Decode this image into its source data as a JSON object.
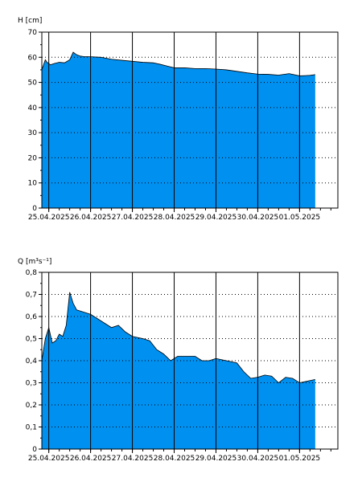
{
  "chart_data": [
    {
      "type": "area",
      "ylabel": "H [cm]",
      "ylim": [
        0,
        70
      ],
      "xlim": [
        "2025-04-24T20:00",
        "2025-05-01T22:00"
      ],
      "y_ticks": [
        "0",
        "10",
        "20",
        "30",
        "40",
        "50",
        "60",
        "70"
      ],
      "x_tick_labels": [
        "25.04.2025",
        "26.04.2025",
        "27.04.2025",
        "28.04.2025",
        "29.04.2025",
        "30.04.2025",
        "01.05.2025"
      ],
      "fill_color": "#0090f0",
      "grid": "dotted horizontal, solid vertical at midnight",
      "series": [
        {
          "x": [
            "2025-04-24T20:00",
            "2025-04-24T21:00",
            "2025-04-24T22:00",
            "2025-04-24T23:00",
            "2025-04-25T01:00",
            "2025-04-25T03:00",
            "2025-04-25T06:00",
            "2025-04-25T09:00",
            "2025-04-25T12:00",
            "2025-04-25T14:00",
            "2025-04-25T16:00",
            "2025-04-25T18:00",
            "2025-04-25T20:00",
            "2025-04-26T00:00",
            "2025-04-26T06:00",
            "2025-04-26T12:00",
            "2025-04-26T18:00",
            "2025-04-27T00:00",
            "2025-04-27T06:00",
            "2025-04-27T12:00",
            "2025-04-27T16:00",
            "2025-04-27T20:00",
            "2025-04-28T00:00",
            "2025-04-28T06:00",
            "2025-04-28T12:00",
            "2025-04-28T18:00",
            "2025-04-29T00:00",
            "2025-04-29T06:00",
            "2025-04-29T12:00",
            "2025-04-29T18:00",
            "2025-04-30T00:00",
            "2025-04-30T06:00",
            "2025-04-30T12:00",
            "2025-04-30T18:00",
            "2025-05-01T00:00",
            "2025-05-01T06:00",
            "2025-05-01T09:00"
          ],
          "y": [
            55,
            57,
            59,
            58,
            57,
            57.5,
            58,
            57.8,
            59,
            62,
            61,
            60.5,
            60.3,
            60.2,
            60,
            59.2,
            58.8,
            58.4,
            58,
            57.8,
            57.2,
            56.5,
            55.8,
            55.8,
            55.5,
            55.5,
            55.3,
            55,
            54.4,
            53.8,
            53.3,
            53.2,
            52.9,
            53.5,
            52.6,
            52.8,
            53.1
          ]
        }
      ]
    },
    {
      "type": "area",
      "ylabel": "Q [m³s⁻¹]",
      "ylim": [
        0,
        0.8
      ],
      "xlim": [
        "2025-04-24T20:00",
        "2025-05-01T22:00"
      ],
      "y_ticks": [
        "0",
        "0,1",
        "0,2",
        "0,3",
        "0,4",
        "0,5",
        "0,6",
        "0,7",
        "0,8"
      ],
      "x_tick_labels": [
        "25.04.2025",
        "26.04.2025",
        "27.04.2025",
        "28.04.2025",
        "29.04.2025",
        "30.04.2025",
        "01.05.2025"
      ],
      "fill_color": "#0090f0",
      "grid": "dotted horizontal, solid vertical at midnight",
      "series": [
        {
          "x": [
            "2025-04-24T20:00",
            "2025-04-24T22:00",
            "2025-04-25T00:00",
            "2025-04-25T02:00",
            "2025-04-25T04:00",
            "2025-04-25T06:00",
            "2025-04-25T08:00",
            "2025-04-25T10:00",
            "2025-04-25T12:00",
            "2025-04-25T14:00",
            "2025-04-25T16:00",
            "2025-04-25T18:00",
            "2025-04-25T20:00",
            "2025-04-26T00:00",
            "2025-04-26T06:00",
            "2025-04-26T12:00",
            "2025-04-26T16:00",
            "2025-04-26T20:00",
            "2025-04-27T00:00",
            "2025-04-27T06:00",
            "2025-04-27T10:00",
            "2025-04-27T14:00",
            "2025-04-27T18:00",
            "2025-04-27T22:00",
            "2025-04-28T02:00",
            "2025-04-28T06:00",
            "2025-04-28T12:00",
            "2025-04-28T16:00",
            "2025-04-28T20:00",
            "2025-04-29T00:00",
            "2025-04-29T06:00",
            "2025-04-29T12:00",
            "2025-04-29T16:00",
            "2025-04-29T20:00",
            "2025-04-30T00:00",
            "2025-04-30T04:00",
            "2025-04-30T08:00",
            "2025-04-30T12:00",
            "2025-04-30T16:00",
            "2025-04-30T20:00",
            "2025-05-01T00:00",
            "2025-05-01T06:00",
            "2025-05-01T09:00"
          ],
          "y": [
            0.4,
            0.5,
            0.55,
            0.48,
            0.49,
            0.52,
            0.51,
            0.56,
            0.71,
            0.66,
            0.63,
            0.625,
            0.62,
            0.61,
            0.58,
            0.55,
            0.56,
            0.53,
            0.51,
            0.5,
            0.49,
            0.45,
            0.43,
            0.4,
            0.42,
            0.42,
            0.42,
            0.4,
            0.4,
            0.41,
            0.4,
            0.39,
            0.35,
            0.32,
            0.325,
            0.335,
            0.33,
            0.3,
            0.325,
            0.32,
            0.3,
            0.31,
            0.315
          ]
        }
      ]
    }
  ]
}
